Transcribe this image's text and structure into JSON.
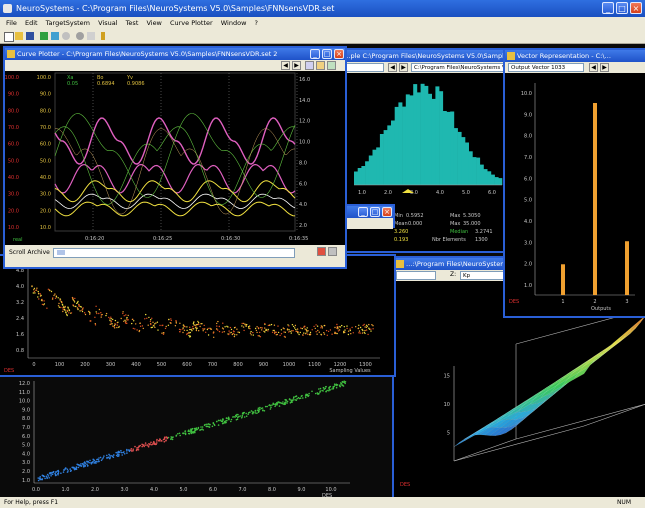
{
  "app": {
    "title": "NeuroSystems - C:\\Program Files\\NeuroSystems V5.0\\Samples\\FNNsensVDR.set",
    "menu": [
      "File",
      "Edit",
      "TargetSystem",
      "Visual",
      "Test",
      "View",
      "Curve Plotter",
      "Window",
      "?"
    ],
    "status": "For Help, press F1",
    "status_right": "NUM"
  },
  "curve_plotter": {
    "title": "Curve Plotter - C:\\Program Files\\NeuroSystems V5.0\\Samples\\FNNsensVDR.set 2",
    "x_label": "Xa",
    "x_val": "0.05",
    "b_label": "Bo",
    "b_val": "0.6894",
    "c_label": "Yv",
    "c_val": "0.9086",
    "yticks": [
      "100.0",
      "90.0",
      "80.0",
      "70.0",
      "60.0",
      "50.0",
      "40.0",
      "30.0",
      "20.0",
      "10.0"
    ],
    "right_ticks": [
      "16.0",
      "14.0",
      "12.0",
      "10.0",
      "8.0",
      "6.0",
      "4.0",
      "2.0"
    ],
    "times": [
      "0:16:20",
      "0:16:25",
      "0:16:30",
      "0:16:35"
    ],
    "corner": "real",
    "scroll_label": "Scroll Archive"
  },
  "histogram": {
    "title": "…ple  C:\\Program Files\\NeuroSystems V5.0\\Sample…",
    "combo": "",
    "path": "C:\\Program Files\\NeuroSystems V5.0\\Sample",
    "xticks": [
      "1.0",
      "2.0",
      "3.0",
      "4.0",
      "5.0",
      "6.0"
    ],
    "stats": {
      "min_label": "Min",
      "min_val": "0.5952",
      "max_label": "Max",
      "max_val": "5.3050",
      "mean_label": "Mean",
      "mean_val": "0.000",
      "max2_label": "Max",
      "max2_val": "35.000",
      "v1": "3.260",
      "median_label": "Median",
      "median_val": "3.2741",
      "v2": "0.193",
      "elements_label": "Nbr Elements",
      "elements_val": "1300"
    }
  },
  "vector_repr": {
    "title": "Vector Representation - C:\\…",
    "combo": "Output Vector 1033",
    "yticks": [
      "10.0",
      "9.0",
      "8.0",
      "7.0",
      "6.0",
      "5.0",
      "4.0",
      "3.0",
      "2.0",
      "1.0"
    ],
    "xticks": [
      "1",
      "2",
      "3"
    ],
    "xlabel": "Outputs",
    "corner": "DES"
  },
  "sampling": {
    "yticks": [
      "4.8",
      "4.0",
      "3.2",
      "2.4",
      "1.6",
      "0.8"
    ],
    "xticks": [
      "0",
      "100",
      "200",
      "300",
      "400",
      "500",
      "600",
      "700",
      "800",
      "900",
      "1000",
      "1100",
      "1200",
      "1300"
    ],
    "xlabel": "Sampling Values",
    "corner": "DES"
  },
  "surface_win": {
    "title": "…:\\Program Files\\NeuroSystem…",
    "combo_left": "",
    "axis_combo_label": "Z:",
    "axis_combo": "Kp",
    "zticks": [
      "15",
      "10",
      "5"
    ],
    "corner": "DES"
  },
  "scatter": {
    "yticks": [
      "12.0",
      "11.0",
      "10.0",
      "9.0",
      "8.0",
      "7.0",
      "6.0",
      "5.0",
      "4.0",
      "3.0",
      "2.0",
      "1.0"
    ],
    "xticks": [
      "0.0",
      "1.0",
      "2.0",
      "3.0",
      "4.0",
      "5.0",
      "6.0",
      "7.0",
      "8.0",
      "9.0",
      "10.0"
    ],
    "xlabel": "DES"
  },
  "colors": {
    "accent": "#2a5fd6",
    "histogram": "#1fb8b0",
    "bars": "#f0a030",
    "magenta": "#e060c0",
    "yellow": "#f0e040"
  }
}
